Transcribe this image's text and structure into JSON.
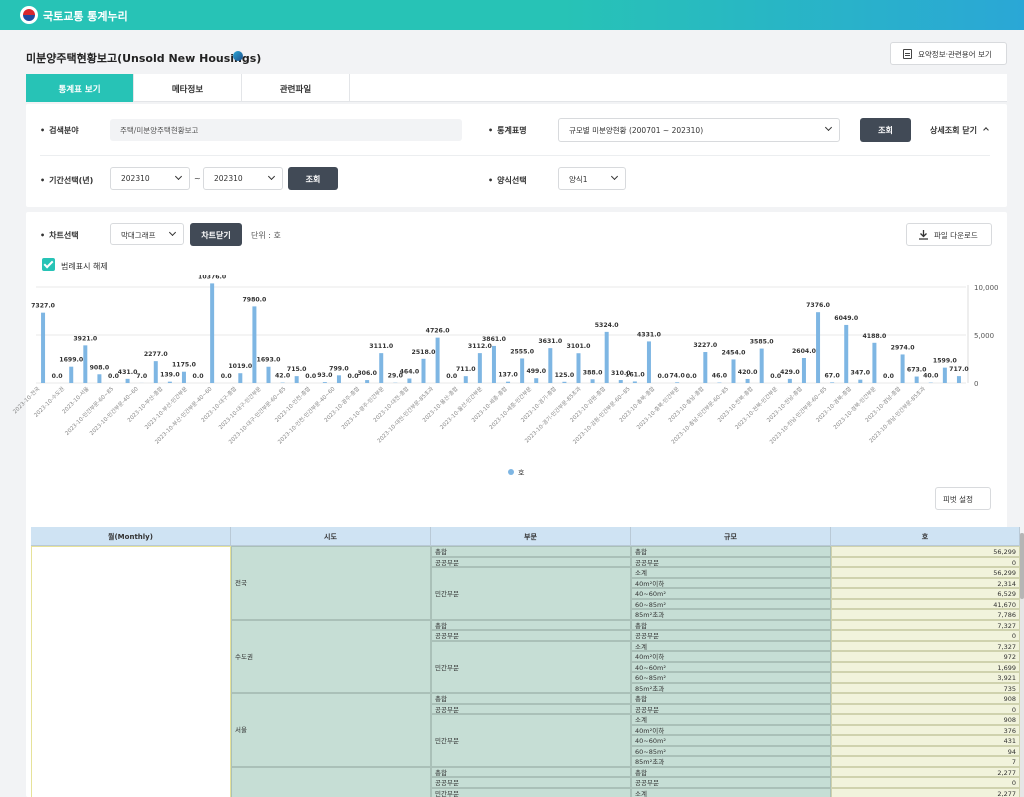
{
  "app": {
    "brand": "국토교통 통계누리"
  },
  "page": {
    "title": "미분양주택현황보고(Unsold New Housings)",
    "summary_button": "요약정보·관련용어 보기"
  },
  "tabs": [
    {
      "label": "통계표 보기"
    },
    {
      "label": "메타정보"
    },
    {
      "label": "관련파일"
    }
  ],
  "search": {
    "field_label": "검색분야",
    "field_value": "주택/미분양주택현황보고",
    "table_label": "통계표명",
    "table_value": "규모별 미분양현황 (200701 ~ 202310)",
    "query_button": "조회",
    "detail_close": "상세조회 닫기",
    "period_label": "기간선택(년)",
    "period_from": "202310",
    "tilde": "~",
    "period_to": "202310",
    "period_button": "조회",
    "format_label": "양식선택",
    "format_value": "양식1"
  },
  "chart_panel": {
    "label": "차트선택",
    "chart_type": "막대그래프",
    "close_chart": "차트닫기",
    "unit": "단위 : 호",
    "download": "파일 다운로드",
    "legend_toggle": "범례표시 해제",
    "pivot": "피벗 설정"
  },
  "chart_data": {
    "type": "bar",
    "values": [
      7327,
      0,
      1699,
      3921,
      908,
      0,
      431,
      7,
      2277,
      139,
      1175,
      0,
      10376,
      0,
      1019,
      7980,
      1693,
      42,
      715,
      0,
      93,
      799,
      0,
      306,
      3111,
      29,
      464,
      2518,
      4726,
      0,
      711,
      3112,
      3861,
      137,
      2555,
      499,
      3631,
      125,
      3101,
      388,
      5324,
      310,
      161,
      4331,
      0,
      74,
      0,
      3227,
      46,
      2454,
      420,
      3585,
      0,
      429,
      2604,
      7376,
      67,
      6049,
      347,
      4188,
      0,
      2974,
      673,
      40,
      1599,
      717
    ],
    "ylim": [
      0,
      10000
    ],
    "yticks": [
      "10,000",
      "5,000",
      "0"
    ],
    "legend": [
      {
        "name": "호",
        "color": "#7eb6e3"
      }
    ],
    "x_tick_labels": [
      "2023-10-전국",
      "2023-10-수도권",
      "2023-10-서울",
      "2023-10-민간부문-60~85",
      "2023-10-민간부문-40~60",
      "2023-10-부산-총합",
      "2023-10-부산-민간부문",
      "2023-10-부산-민간부문-40~60",
      "2023-10-대구-총합",
      "2023-10-대구-민간부문",
      "2023-10-대구-민간부문-60~85",
      "2023-10-인천-총합",
      "2023-10-인천-민간부문-40~60",
      "2023-10-광주-총합",
      "2023-10-광주-민간부문",
      "2023-10-대전-총합",
      "2023-10-대전-민간부문-85초과",
      "2023-10-울산-총합",
      "2023-10-울산-민간부문",
      "2023-10-세종-총합",
      "2023-10-세종-민간부문",
      "2023-10-경기-총합",
      "2023-10-경기-민간부문-85초과",
      "2023-10-강원-총합",
      "2023-10-강원-민간부문-60~85",
      "2023-10-충북-총합",
      "2023-10-충북-민간부문",
      "2023-10-충남-총합",
      "2023-10-충남-민간부문-60~85",
      "2023-10-전북-총합",
      "2023-10-전북-민간부문",
      "2023-10-전남-총합",
      "2023-10-전남-민간부문-60~85",
      "2023-10-경북-총합",
      "2023-10-경북-민간부문",
      "2023-10-경남-총합",
      "2023-10-경남-민간부문-85초과"
    ]
  },
  "table": {
    "headers": [
      "월(Monthly)",
      "시도",
      "부문",
      "규모",
      "호"
    ],
    "rows": [
      {
        "sido": "전국",
        "groups": [
          {
            "bumun": "총합",
            "items": [
              {
                "gyumo": "총합",
                "value": "56,299"
              }
            ]
          },
          {
            "bumun": "공공부문",
            "items": [
              {
                "gyumo": "공공부문",
                "value": "0"
              }
            ]
          },
          {
            "bumun": "민간부문",
            "items": [
              {
                "gyumo": "소계",
                "value": "56,299"
              },
              {
                "gyumo": "40m²이하",
                "value": "2,314"
              },
              {
                "gyumo": "40~60m²",
                "value": "6,529"
              },
              {
                "gyumo": "60~85m²",
                "value": "41,670"
              },
              {
                "gyumo": "85m²초과",
                "value": "7,786"
              }
            ]
          }
        ]
      },
      {
        "sido": "수도권",
        "groups": [
          {
            "bumun": "총합",
            "items": [
              {
                "gyumo": "총합",
                "value": "7,327"
              }
            ]
          },
          {
            "bumun": "공공부문",
            "items": [
              {
                "gyumo": "공공부문",
                "value": "0"
              }
            ]
          },
          {
            "bumun": "민간부문",
            "items": [
              {
                "gyumo": "소계",
                "value": "7,327"
              },
              {
                "gyumo": "40m²이하",
                "value": "972"
              },
              {
                "gyumo": "40~60m²",
                "value": "1,699"
              },
              {
                "gyumo": "60~85m²",
                "value": "3,921"
              },
              {
                "gyumo": "85m²초과",
                "value": "735"
              }
            ]
          }
        ]
      },
      {
        "sido": "서울",
        "groups": [
          {
            "bumun": "총합",
            "items": [
              {
                "gyumo": "총합",
                "value": "908"
              }
            ]
          },
          {
            "bumun": "공공부문",
            "items": [
              {
                "gyumo": "공공부문",
                "value": "0"
              }
            ]
          },
          {
            "bumun": "민간부문",
            "items": [
              {
                "gyumo": "소계",
                "value": "908"
              },
              {
                "gyumo": "40m²이하",
                "value": "376"
              },
              {
                "gyumo": "40~60m²",
                "value": "431"
              },
              {
                "gyumo": "60~85m²",
                "value": "94"
              },
              {
                "gyumo": "85m²초과",
                "value": "7"
              }
            ]
          }
        ]
      },
      {
        "sido": "",
        "groups": [
          {
            "bumun": "총합",
            "items": [
              {
                "gyumo": "총합",
                "value": "2,277"
              }
            ]
          },
          {
            "bumun": "공공부문",
            "items": [
              {
                "gyumo": "공공부문",
                "value": "0"
              }
            ]
          },
          {
            "bumun": "민간부문",
            "items": [
              {
                "gyumo": "소계",
                "value": "2,277"
              }
            ]
          }
        ]
      }
    ]
  }
}
